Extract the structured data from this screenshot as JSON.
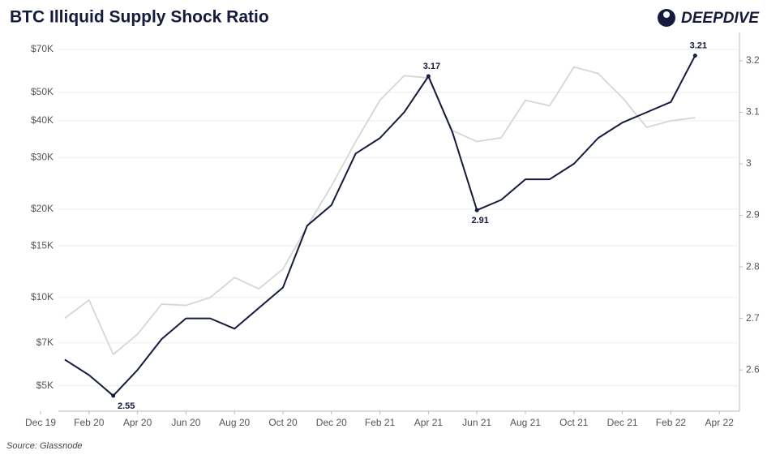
{
  "header": {
    "title": "BTC Illiquid Supply Shock Ratio",
    "brand": "DEEPDIVE"
  },
  "footer": {
    "source": "Source: Glassnode"
  },
  "chart_data": {
    "type": "line",
    "x": [
      "Dec 19",
      "Jan 20",
      "Feb 20",
      "Mar 20",
      "Apr 20",
      "May 20",
      "Jun 20",
      "Jul 20",
      "Aug 20",
      "Sep 20",
      "Oct 20",
      "Nov 20",
      "Dec 20",
      "Jan 21",
      "Feb 21",
      "Mar 21",
      "Apr 21",
      "May 21",
      "Jun 21",
      "Jul 21",
      "Aug 21",
      "Sep 21",
      "Oct 21",
      "Nov 21",
      "Dec 21",
      "Jan 22",
      "Feb 22",
      "Mar 22",
      "Apr 22"
    ],
    "xticks": [
      "Dec 19",
      "Feb 20",
      "Apr 20",
      "Jun 20",
      "Aug 20",
      "Oct 20",
      "Dec 20",
      "Feb 21",
      "Apr 21",
      "Jun 21",
      "Aug 21",
      "Oct 21",
      "Dec 21",
      "Feb 22",
      "Apr 22"
    ],
    "log_y": true,
    "ylim": [
      4100,
      80000
    ],
    "yticks": [
      {
        "value": 5000,
        "label": "$5K"
      },
      {
        "value": 7000,
        "label": "$7K"
      },
      {
        "value": 10000,
        "label": "$10K"
      },
      {
        "value": 15000,
        "label": "$15K"
      },
      {
        "value": 20000,
        "label": "$20K"
      },
      {
        "value": 30000,
        "label": "$30K"
      },
      {
        "value": 40000,
        "label": "$40K"
      },
      {
        "value": 50000,
        "label": "$50K"
      },
      {
        "value": 70000,
        "label": "$70K"
      }
    ],
    "y2lim": [
      2.52,
      3.255
    ],
    "y2ticks": [
      2.6,
      2.7,
      2.8,
      2.9,
      3.0,
      3.1,
      3.2
    ],
    "grid": true,
    "series": [
      {
        "color": "#d6d6d6",
        "values": [
          null,
          8500,
          9800,
          6400,
          7500,
          9500,
          9400,
          10000,
          11700,
          10700,
          12500,
          17500,
          24000,
          34000,
          47000,
          57000,
          56000,
          37000,
          34000,
          35000,
          47000,
          45000,
          61000,
          58000,
          48000,
          38000,
          40000,
          41000,
          null
        ]
      },
      {
        "color": "#141b3c",
        "axis": "y2",
        "values": [
          null,
          2.62,
          2.59,
          2.55,
          2.6,
          2.66,
          2.7,
          2.7,
          2.68,
          2.72,
          2.76,
          2.88,
          2.92,
          3.02,
          3.05,
          3.1,
          3.17,
          3.06,
          2.91,
          2.93,
          2.97,
          2.97,
          3.0,
          3.05,
          3.08,
          3.1,
          3.12,
          3.21,
          null
        ]
      }
    ],
    "annotations": [
      {
        "x": "Mar 20",
        "value": 2.55
      },
      {
        "x": "Apr 21",
        "value": 3.17
      },
      {
        "x": "Jun 21",
        "value": 2.91
      },
      {
        "x": "Mar 22",
        "value": 3.21
      }
    ]
  }
}
